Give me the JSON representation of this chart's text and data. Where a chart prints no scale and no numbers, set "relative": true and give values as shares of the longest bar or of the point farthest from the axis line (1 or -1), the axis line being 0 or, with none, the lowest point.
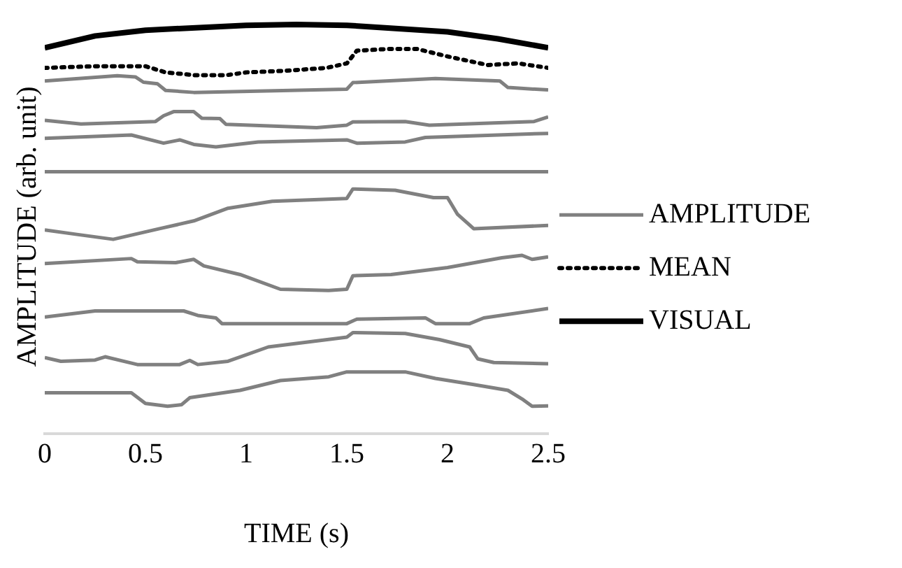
{
  "chart_data": {
    "type": "line",
    "xlabel": "TIME (s)",
    "ylabel": "AMPLITUDE (arb. unit)",
    "relative": true,
    "xlim": [
      0,
      2.5
    ],
    "xticks": [
      0,
      0.5,
      1,
      1.5,
      2,
      2.5
    ],
    "grid": false,
    "legend": "right",
    "marker": "none",
    "line_style": "solid",
    "series": [
      {
        "name": "AMPLITUDE",
        "color": "#808080",
        "x": [
          0,
          0.36,
          0.45,
          0.49,
          0.56,
          0.6,
          0.74,
          1.5,
          1.53,
          1.94,
          2.26,
          2.3,
          2.5
        ],
        "values": [
          0.862,
          0.875,
          0.872,
          0.859,
          0.855,
          0.839,
          0.834,
          0.842,
          0.858,
          0.868,
          0.862,
          0.846,
          0.84
        ]
      },
      {
        "color": "#808080",
        "x": [
          0,
          0.18,
          0.55,
          0.59,
          0.64,
          0.74,
          0.78,
          0.87,
          0.9,
          1.35,
          1.5,
          1.53,
          1.79,
          1.91,
          2.43,
          2.5
        ],
        "values": [
          0.766,
          0.757,
          0.763,
          0.777,
          0.787,
          0.787,
          0.771,
          0.77,
          0.756,
          0.748,
          0.754,
          0.762,
          0.763,
          0.754,
          0.763,
          0.774
        ]
      },
      {
        "color": "#808080",
        "x": [
          0,
          0.43,
          0.59,
          0.67,
          0.74,
          0.85,
          1.06,
          1.5,
          1.55,
          1.79,
          1.89,
          2.5
        ],
        "values": [
          0.722,
          0.73,
          0.71,
          0.718,
          0.707,
          0.701,
          0.713,
          0.718,
          0.71,
          0.713,
          0.724,
          0.734
        ]
      },
      {
        "color": "#808080",
        "x": [
          0,
          2.5
        ],
        "values": [
          0.64,
          0.64
        ]
      },
      {
        "color": "#808080",
        "x": [
          0,
          0.16,
          0.34,
          0.57,
          0.74,
          0.91,
          1.13,
          1.5,
          1.53,
          1.74,
          1.93,
          2.0,
          2.05,
          2.13,
          2.5
        ],
        "values": [
          0.498,
          0.487,
          0.475,
          0.501,
          0.52,
          0.551,
          0.568,
          0.575,
          0.598,
          0.595,
          0.577,
          0.577,
          0.536,
          0.501,
          0.509
        ]
      },
      {
        "color": "#808080",
        "x": [
          0,
          0.43,
          0.46,
          0.65,
          0.74,
          0.79,
          0.97,
          1.17,
          1.41,
          1.5,
          1.53,
          1.72,
          2.0,
          2.27,
          2.37,
          2.42,
          2.5
        ],
        "values": [
          0.416,
          0.428,
          0.42,
          0.418,
          0.426,
          0.41,
          0.389,
          0.353,
          0.35,
          0.353,
          0.386,
          0.389,
          0.406,
          0.43,
          0.436,
          0.426,
          0.432
        ]
      },
      {
        "color": "#808080",
        "x": [
          0,
          0.25,
          0.45,
          0.69,
          0.76,
          0.85,
          0.88,
          1.5,
          1.55,
          1.89,
          1.94,
          2.11,
          2.18,
          2.5
        ],
        "values": [
          0.285,
          0.3,
          0.3,
          0.3,
          0.289,
          0.283,
          0.269,
          0.269,
          0.28,
          0.283,
          0.269,
          0.269,
          0.283,
          0.306
        ]
      },
      {
        "color": "#808080",
        "x": [
          0,
          0.08,
          0.25,
          0.3,
          0.46,
          0.67,
          0.72,
          0.76,
          0.91,
          1.11,
          1.5,
          1.53,
          1.79,
          1.96,
          2.11,
          2.15,
          2.23,
          2.5
        ],
        "values": [
          0.186,
          0.177,
          0.18,
          0.188,
          0.169,
          0.169,
          0.179,
          0.169,
          0.177,
          0.212,
          0.236,
          0.247,
          0.245,
          0.23,
          0.212,
          0.183,
          0.174,
          0.171
        ]
      },
      {
        "color": "#808080",
        "x": [
          0,
          0.43,
          0.5,
          0.61,
          0.68,
          0.72,
          0.97,
          1.17,
          1.41,
          1.5,
          1.79,
          1.94,
          2.13,
          2.3,
          2.37,
          2.42,
          2.5
        ],
        "values": [
          0.1,
          0.1,
          0.074,
          0.067,
          0.071,
          0.088,
          0.106,
          0.13,
          0.139,
          0.151,
          0.151,
          0.135,
          0.12,
          0.106,
          0.085,
          0.067,
          0.068
        ]
      },
      {
        "name": "MEAN",
        "color": "#000000",
        "line_style": "dotted",
        "x": [
          0,
          0.25,
          0.5,
          0.6,
          0.75,
          0.9,
          1.0,
          1.2,
          1.4,
          1.5,
          1.55,
          1.7,
          1.85,
          2.0,
          2.2,
          2.35,
          2.5
        ],
        "values": [
          0.894,
          0.898,
          0.898,
          0.883,
          0.876,
          0.876,
          0.883,
          0.887,
          0.894,
          0.905,
          0.936,
          0.94,
          0.94,
          0.922,
          0.901,
          0.905,
          0.894
        ]
      },
      {
        "name": "VISUAL",
        "color": "#000000",
        "x": [
          0,
          0.25,
          0.5,
          1,
          1.25,
          1.5,
          2,
          2.25,
          2.5
        ],
        "values": [
          0.943,
          0.972,
          0.986,
          0.998,
          1,
          0.998,
          0.982,
          0.965,
          0.943
        ]
      }
    ]
  }
}
